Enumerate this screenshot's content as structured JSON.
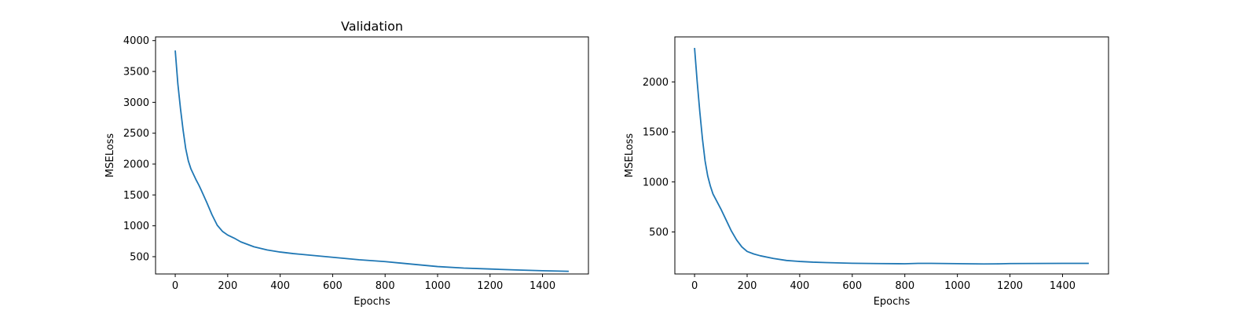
{
  "chart_data": [
    {
      "type": "line",
      "title": "Validation",
      "xlabel": "Epochs",
      "ylabel": "MSELoss",
      "xlim": [
        -75,
        1575
      ],
      "ylim": [
        220,
        4060
      ],
      "xticks": [
        0,
        200,
        400,
        600,
        800,
        1000,
        1200,
        1400
      ],
      "yticks": [
        500,
        1000,
        1500,
        2000,
        2500,
        3000,
        3500,
        4000
      ],
      "grid": false,
      "color": "#1f77b4",
      "series": [
        {
          "x": [
            0,
            10,
            20,
            30,
            40,
            50,
            60,
            70,
            80,
            90,
            100,
            120,
            140,
            160,
            180,
            200,
            225,
            250,
            300,
            350,
            400,
            450,
            500,
            600,
            700,
            800,
            900,
            1000,
            1100,
            1200,
            1300,
            1400,
            1500
          ],
          "y": [
            3840,
            3300,
            2900,
            2550,
            2250,
            2050,
            1920,
            1830,
            1740,
            1660,
            1570,
            1380,
            1180,
            1010,
            910,
            850,
            800,
            740,
            660,
            610,
            575,
            550,
            530,
            490,
            450,
            420,
            380,
            340,
            315,
            300,
            285,
            272,
            263
          ]
        }
      ]
    },
    {
      "type": "line",
      "title": "",
      "xlabel": "Epochs",
      "ylabel": "MSELoss",
      "xlim": [
        -75,
        1575
      ],
      "ylim": [
        80,
        2450
      ],
      "xticks": [
        0,
        200,
        400,
        600,
        800,
        1000,
        1200,
        1400
      ],
      "yticks": [
        500,
        1000,
        1500,
        2000
      ],
      "grid": false,
      "color": "#1f77b4",
      "series": [
        {
          "x": [
            0,
            10,
            20,
            30,
            40,
            50,
            60,
            70,
            80,
            90,
            100,
            120,
            140,
            160,
            180,
            200,
            225,
            250,
            300,
            350,
            400,
            450,
            500,
            600,
            700,
            800,
            850,
            900,
            1000,
            1100,
            1150,
            1200,
            1300,
            1400,
            1500
          ],
          "y": [
            2340,
            2000,
            1700,
            1430,
            1210,
            1060,
            960,
            880,
            830,
            780,
            730,
            620,
            510,
            420,
            350,
            305,
            280,
            262,
            235,
            215,
            205,
            198,
            194,
            187,
            184,
            182,
            186,
            186,
            183,
            180,
            181,
            184,
            185,
            186,
            186
          ]
        }
      ]
    }
  ]
}
